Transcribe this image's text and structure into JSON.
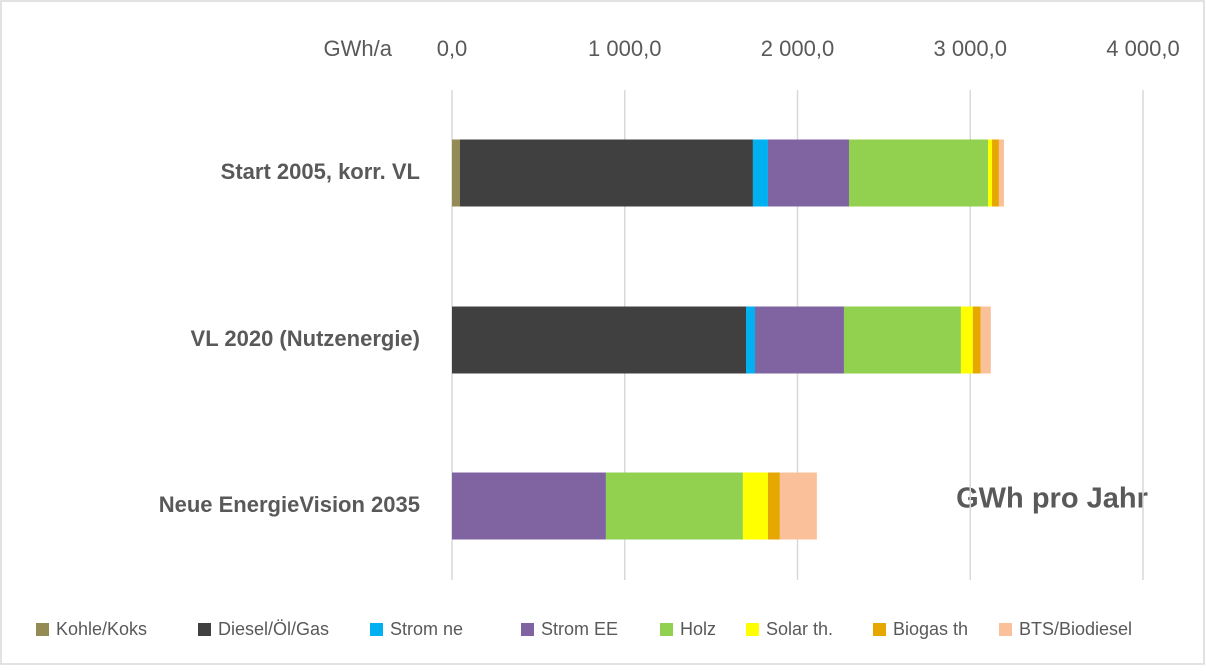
{
  "chart_data": {
    "type": "stacked_barh",
    "x_axis_label": "GWh/a",
    "annotation": "GWh pro Jahr",
    "categories": [
      "Start 2005, korr. VL",
      "VL 2020 (Nutzenergie)",
      "Neue EnergieVision 2035"
    ],
    "series": [
      {
        "name": "Kohle/Koks",
        "color": "#948a54",
        "values": [
          45,
          0,
          0
        ]
      },
      {
        "name": "Diesel/Öl/Gas",
        "color": "#404040",
        "values": [
          1697,
          1702,
          0
        ]
      },
      {
        "name": "Strom ne",
        "color": "#00b0f0",
        "values": [
          87,
          52,
          0
        ]
      },
      {
        "name": "Strom EE",
        "color": "#8064a2",
        "values": [
          469,
          515,
          891
        ]
      },
      {
        "name": "Holz",
        "color": "#92d050",
        "values": [
          805,
          677,
          793
        ]
      },
      {
        "name": "Solar th.",
        "color": "#ffff00",
        "values": [
          23,
          69,
          145
        ]
      },
      {
        "name": "Biogas th",
        "color": "#e6a800",
        "values": [
          40,
          46,
          69
        ]
      },
      {
        "name": "BTS/Biodiesel",
        "color": "#f9c09a",
        "values": [
          29,
          58,
          214
        ]
      }
    ],
    "xlim": [
      0,
      4000
    ],
    "xticks": [
      {
        "value": 0,
        "label": "0,0"
      },
      {
        "value": 1000,
        "label": "1 000,0"
      },
      {
        "value": 2000,
        "label": "2 000,0"
      },
      {
        "value": 3000,
        "label": "3 000,0"
      },
      {
        "value": 4000,
        "label": "4 000,0"
      }
    ],
    "grid": true,
    "legend": "bottom"
  }
}
